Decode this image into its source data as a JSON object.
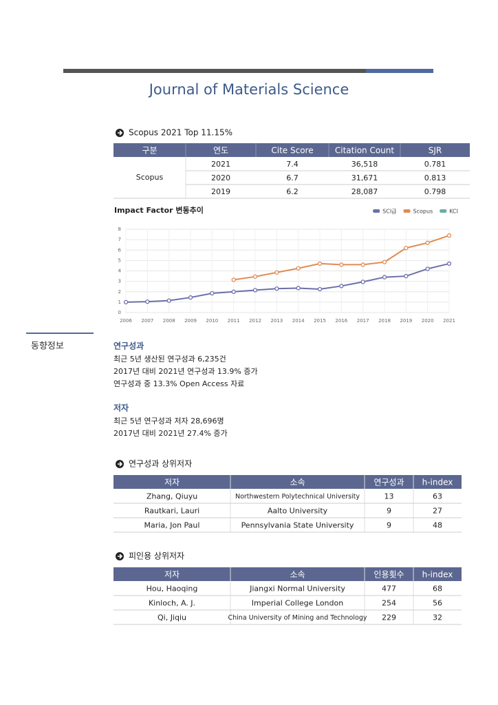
{
  "title": "Journal of Materials Science",
  "scopus": {
    "heading": "Scopus 2021 Top 11.15%",
    "columns": [
      "구분",
      "연도",
      "Cite Score",
      "Citation Count",
      "SJR"
    ],
    "group": "Scopus",
    "rows": [
      [
        "2021",
        "7.4",
        "36,518",
        "0.781"
      ],
      [
        "2020",
        "6.7",
        "31,671",
        "0.813"
      ],
      [
        "2019",
        "6.2",
        "28,087",
        "0.798"
      ]
    ]
  },
  "chart_data": {
    "type": "line",
    "title": "Impact Factor 변동추이",
    "x": [
      2006,
      2007,
      2008,
      2009,
      2010,
      2011,
      2012,
      2013,
      2014,
      2015,
      2016,
      2017,
      2018,
      2019,
      2020,
      2021
    ],
    "xlim": [
      2006,
      2021
    ],
    "xticks": [
      2006,
      2007,
      2008,
      2009,
      2010,
      2011,
      2012,
      2013,
      2014,
      2015,
      2016,
      2017,
      2018,
      2019,
      2020,
      2021
    ],
    "ylim": [
      0,
      8
    ],
    "yticks": [
      0,
      1,
      2,
      3,
      4,
      5,
      6,
      7,
      8
    ],
    "grid": true,
    "legend": "top-right",
    "series": [
      {
        "name": "SCI급",
        "color": "#6b6fa8",
        "values": [
          1.0,
          1.05,
          1.15,
          1.45,
          1.85,
          2.0,
          2.15,
          2.3,
          2.35,
          2.25,
          2.55,
          2.95,
          3.4,
          3.5,
          4.2,
          4.7
        ]
      },
      {
        "name": "Scopus",
        "color": "#e08c52",
        "values": [
          null,
          null,
          null,
          null,
          null,
          3.15,
          3.45,
          3.85,
          4.25,
          4.7,
          4.6,
          4.6,
          4.85,
          6.2,
          6.7,
          7.4
        ]
      },
      {
        "name": "KCI",
        "color": "#6aaba8",
        "values": [
          null,
          null,
          null,
          null,
          null,
          null,
          null,
          null,
          null,
          null,
          null,
          null,
          null,
          null,
          null,
          null
        ]
      }
    ]
  },
  "side_label": "동향정보",
  "sections": [
    {
      "heading": "연구성과",
      "lines": [
        "최근 5년 생산된 연구성과 6,235건",
        "2017년 대비 2021년 연구성과 13.9% 증가",
        "연구성과 중 13.3% Open Access 자료"
      ]
    },
    {
      "heading": "저자",
      "lines": [
        "최근 5년 연구성과 저자 28,696명",
        "2017년 대비 2021년 27.4% 증가"
      ]
    }
  ],
  "tables": [
    {
      "heading": "연구성과 상위저자",
      "columns": [
        "저자",
        "소속",
        "연구성과",
        "h-index"
      ],
      "rows": [
        [
          "Zhang, Qiuyu",
          "Northwestern Polytechnical University",
          "13",
          "63"
        ],
        [
          "Rautkari, Lauri",
          "Aalto University",
          "9",
          "27"
        ],
        [
          "Maria, Jon Paul",
          "Pennsylvania State University",
          "9",
          "48"
        ]
      ]
    },
    {
      "heading": "피인용 상위저자",
      "columns": [
        "저자",
        "소속",
        "인용횟수",
        "h-index"
      ],
      "rows": [
        [
          "Hou, Haoqing",
          "Jiangxi Normal University",
          "477",
          "68"
        ],
        [
          "Kinloch, A. J.",
          "Imperial College London",
          "254",
          "56"
        ],
        [
          "Qi, Jiqiu",
          "China University of Mining and Technology",
          "229",
          "32"
        ]
      ]
    }
  ]
}
